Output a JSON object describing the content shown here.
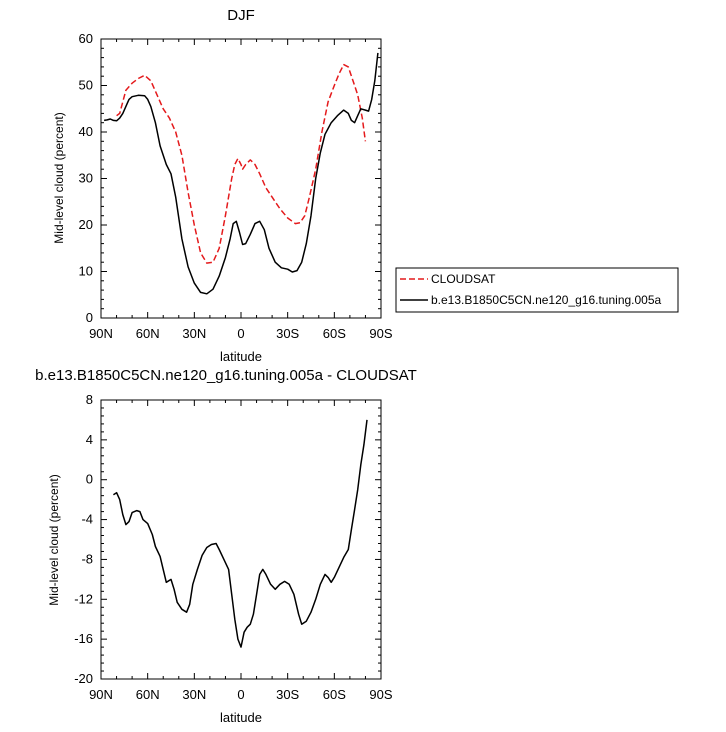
{
  "chart_data": [
    {
      "type": "line",
      "title": "DJF",
      "xlabel": "latitude",
      "ylabel": "Mid-level cloud (percent)",
      "x_axis_direction": "90N to 90S",
      "xlim": [
        90,
        -90
      ],
      "ylim": [
        0,
        60
      ],
      "xticks": [
        {
          "value": 90,
          "label": "90N"
        },
        {
          "value": 60,
          "label": "60N"
        },
        {
          "value": 30,
          "label": "30N"
        },
        {
          "value": 0,
          "label": "0"
        },
        {
          "value": -30,
          "label": "30S"
        },
        {
          "value": -60,
          "label": "60S"
        },
        {
          "value": -90,
          "label": "90S"
        }
      ],
      "yticks": [
        0,
        10,
        20,
        30,
        40,
        50,
        60
      ],
      "grid": false,
      "legend_position": "outside-right",
      "series": [
        {
          "name": "CLOUDSAT",
          "color": "#e41a1c",
          "dash": "dashed",
          "points": [
            [
              80,
              43.5
            ],
            [
              78,
              44
            ],
            [
              76,
              46.5
            ],
            [
              74,
              49
            ],
            [
              70,
              50.5
            ],
            [
              66,
              51.5
            ],
            [
              62,
              52.2
            ],
            [
              58,
              51
            ],
            [
              54,
              48
            ],
            [
              50,
              45
            ],
            [
              46,
              43
            ],
            [
              42,
              40
            ],
            [
              38,
              35
            ],
            [
              34,
              27
            ],
            [
              30,
              20
            ],
            [
              26,
              14
            ],
            [
              22,
              11.8
            ],
            [
              18,
              12
            ],
            [
              14,
              15
            ],
            [
              10,
              22
            ],
            [
              6,
              30
            ],
            [
              4,
              33
            ],
            [
              2,
              34.3
            ],
            [
              0,
              33
            ],
            [
              -1,
              32
            ],
            [
              -3,
              33
            ],
            [
              -6,
              34
            ],
            [
              -9,
              33
            ],
            [
              -12,
              31
            ],
            [
              -16,
              28
            ],
            [
              -20,
              26
            ],
            [
              -25,
              23.5
            ],
            [
              -30,
              21.5
            ],
            [
              -35,
              20.3
            ],
            [
              -38,
              20.5
            ],
            [
              -41,
              22
            ],
            [
              -44,
              26
            ],
            [
              -48,
              32
            ],
            [
              -52,
              40
            ],
            [
              -56,
              46.5
            ],
            [
              -60,
              50
            ],
            [
              -63,
              52.5
            ],
            [
              -66,
              54.5
            ],
            [
              -69,
              54
            ],
            [
              -72,
              51
            ],
            [
              -75,
              48
            ],
            [
              -78,
              43
            ],
            [
              -80,
              38
            ]
          ]
        },
        {
          "name": "b.e13.B1850C5CN.ne120_g16.tuning.005a",
          "color": "#000000",
          "dash": "solid",
          "points": [
            [
              88,
              42.5
            ],
            [
              86,
              42.6
            ],
            [
              84,
              42.8
            ],
            [
              82,
              42.5
            ],
            [
              80,
              42.4
            ],
            [
              78,
              43
            ],
            [
              76,
              44
            ],
            [
              74,
              45.5
            ],
            [
              72,
              47
            ],
            [
              70,
              47.6
            ],
            [
              66,
              47.9
            ],
            [
              62,
              47.8
            ],
            [
              60,
              47
            ],
            [
              58,
              45.5
            ],
            [
              55,
              42
            ],
            [
              52,
              37
            ],
            [
              48,
              33
            ],
            [
              45,
              31
            ],
            [
              42,
              26
            ],
            [
              38,
              17
            ],
            [
              34,
              11
            ],
            [
              30,
              7.5
            ],
            [
              26,
              5.5
            ],
            [
              22,
              5.2
            ],
            [
              18,
              6.2
            ],
            [
              14,
              9
            ],
            [
              10,
              13
            ],
            [
              7,
              17
            ],
            [
              5,
              20.3
            ],
            [
              3,
              20.8
            ],
            [
              1,
              18.5
            ],
            [
              -1,
              15.8
            ],
            [
              -3,
              16
            ],
            [
              -6,
              18
            ],
            [
              -9,
              20.3
            ],
            [
              -12,
              20.8
            ],
            [
              -15,
              19
            ],
            [
              -18,
              15
            ],
            [
              -22,
              12
            ],
            [
              -26,
              10.8
            ],
            [
              -30,
              10.5
            ],
            [
              -33,
              9.9
            ],
            [
              -36,
              10.2
            ],
            [
              -39,
              12
            ],
            [
              -42,
              16
            ],
            [
              -45,
              22
            ],
            [
              -48,
              30
            ],
            [
              -51,
              35.5
            ],
            [
              -54,
              39.5
            ],
            [
              -58,
              42
            ],
            [
              -62,
              43.5
            ],
            [
              -66,
              44.7
            ],
            [
              -69,
              44
            ],
            [
              -71,
              42.5
            ],
            [
              -73,
              42
            ],
            [
              -75,
              43.5
            ],
            [
              -77,
              45
            ],
            [
              -80,
              44.7
            ],
            [
              -82,
              44.5
            ],
            [
              -84,
              47
            ],
            [
              -86,
              51
            ],
            [
              -88,
              57
            ]
          ]
        }
      ]
    },
    {
      "type": "line",
      "title": "b.e13.B1850C5CN.ne120_g16.tuning.005a - CLOUDSAT",
      "xlabel": "latitude",
      "ylabel": "Mid-level cloud (percent)",
      "x_axis_direction": "90N to 90S",
      "xlim": [
        90,
        -90
      ],
      "ylim": [
        -20,
        8
      ],
      "xticks": [
        {
          "value": 90,
          "label": "90N"
        },
        {
          "value": 60,
          "label": "60N"
        },
        {
          "value": 30,
          "label": "30N"
        },
        {
          "value": 0,
          "label": "0"
        },
        {
          "value": -30,
          "label": "30S"
        },
        {
          "value": -60,
          "label": "60S"
        },
        {
          "value": -90,
          "label": "90S"
        }
      ],
      "yticks": [
        -20,
        -16,
        -12,
        -8,
        -4,
        0,
        4,
        8
      ],
      "grid": false,
      "series": [
        {
          "color": "#000000",
          "dash": "solid",
          "points": [
            [
              82,
              -1.5
            ],
            [
              80,
              -1.3
            ],
            [
              78,
              -2
            ],
            [
              76,
              -3.5
            ],
            [
              74,
              -4.5
            ],
            [
              72,
              -4.2
            ],
            [
              70,
              -3.3
            ],
            [
              67,
              -3.1
            ],
            [
              65,
              -3.2
            ],
            [
              63,
              -4
            ],
            [
              60,
              -4.4
            ],
            [
              57,
              -5.5
            ],
            [
              55,
              -6.7
            ],
            [
              52,
              -7.7
            ],
            [
              50,
              -9
            ],
            [
              48,
              -10.3
            ],
            [
              45,
              -10
            ],
            [
              43,
              -11
            ],
            [
              41,
              -12.3
            ],
            [
              38,
              -13
            ],
            [
              35,
              -13.3
            ],
            [
              33,
              -12.5
            ],
            [
              31,
              -10.5
            ],
            [
              28,
              -9
            ],
            [
              25,
              -7.6
            ],
            [
              22,
              -6.8
            ],
            [
              19,
              -6.5
            ],
            [
              16,
              -6.4
            ],
            [
              14,
              -7
            ],
            [
              11,
              -8
            ],
            [
              8,
              -9
            ],
            [
              6,
              -11.5
            ],
            [
              4,
              -14
            ],
            [
              2,
              -16
            ],
            [
              0,
              -16.8
            ],
            [
              -2,
              -15.3
            ],
            [
              -4,
              -14.8
            ],
            [
              -6,
              -14.5
            ],
            [
              -8,
              -13.5
            ],
            [
              -10,
              -11.5
            ],
            [
              -12,
              -9.5
            ],
            [
              -14,
              -9
            ],
            [
              -16,
              -9.5
            ],
            [
              -19,
              -10.5
            ],
            [
              -22,
              -11
            ],
            [
              -25,
              -10.5
            ],
            [
              -28,
              -10.2
            ],
            [
              -31,
              -10.5
            ],
            [
              -34,
              -11.5
            ],
            [
              -37,
              -13.5
            ],
            [
              -39,
              -14.5
            ],
            [
              -42,
              -14.2
            ],
            [
              -45,
              -13.3
            ],
            [
              -48,
              -12
            ],
            [
              -51,
              -10.5
            ],
            [
              -54,
              -9.5
            ],
            [
              -56,
              -9.8
            ],
            [
              -58,
              -10.3
            ],
            [
              -60,
              -9.8
            ],
            [
              -63,
              -8.8
            ],
            [
              -66,
              -7.8
            ],
            [
              -69,
              -7
            ],
            [
              -71,
              -5
            ],
            [
              -73,
              -3
            ],
            [
              -75,
              -1
            ],
            [
              -77,
              1.5
            ],
            [
              -79,
              3.5
            ],
            [
              -81,
              6
            ]
          ]
        }
      ]
    }
  ]
}
